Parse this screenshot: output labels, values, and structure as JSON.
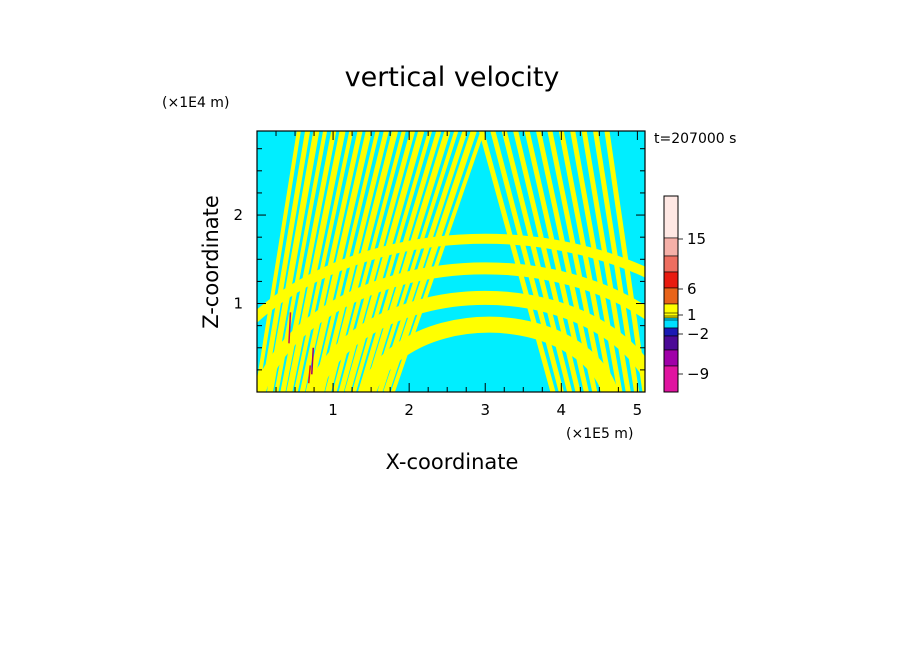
{
  "chart_data": {
    "type": "heatmap",
    "title": "vertical velocity",
    "time_label": "t=207000 s",
    "xlabel": "X-coordinate",
    "ylabel": "Z-coordinate",
    "x_unit": "(×1E5 m)",
    "y_unit": "(×1E4 m)",
    "xlim": [
      0,
      5.1
    ],
    "ylim": [
      0,
      2.95
    ],
    "x_ticks": [
      1,
      2,
      3,
      4,
      5
    ],
    "y_ticks": [
      1,
      2
    ],
    "grid": false,
    "colorbar": {
      "labels": [
        15,
        6,
        1,
        -2,
        -9
      ],
      "colors": [
        "#ffe8e4",
        "#f5b0a8",
        "#ee6e60",
        "#e81b10",
        "#e8641a",
        "#ffff00",
        "#00e0ff",
        "#1a1ab4",
        "#4b0a96",
        "#a000a8",
        "#e014a0"
      ],
      "label_index": [
        1,
        4,
        5,
        7,
        9
      ]
    },
    "field_description": "alternating yellow (upward) and cyan (downward) velocity bands; fine-scale banding near x<1, broad arch-shaped bands centered near x=3"
  }
}
